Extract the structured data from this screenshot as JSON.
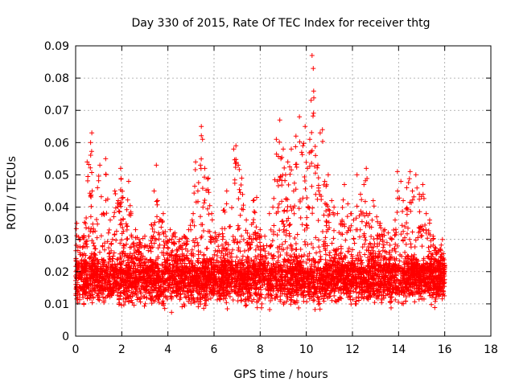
{
  "chart_data": {
    "type": "scatter",
    "title": "Day 330 of 2015, Rate Of TEC Index for receiver thtg",
    "xlabel": "GPS time / hours",
    "ylabel": "ROTI / TECUs",
    "xlim": [
      0,
      18
    ],
    "ylim": [
      0,
      0.09
    ],
    "x_ticks": [
      "0",
      "2",
      "4",
      "6",
      "8",
      "10",
      "12",
      "14",
      "16",
      "18"
    ],
    "y_ticks": [
      "0",
      "0.01",
      "0.02",
      "0.03",
      "0.04",
      "0.05",
      "0.06",
      "0.07",
      "0.08",
      "0.09"
    ],
    "grid": true,
    "marker": "+",
    "color": "#ff0000",
    "series": [
      {
        "x": [
          0.05,
          0.2,
          0.35,
          0.5,
          0.65,
          0.7,
          0.72,
          0.8,
          0.95,
          1.05,
          1.2,
          1.3,
          1.5,
          1.6,
          1.7,
          1.85,
          1.95,
          2.05,
          2.1,
          2.3,
          2.4,
          2.6,
          2.75,
          3.0,
          3.2,
          3.4,
          3.5,
          3.55,
          3.7,
          3.8,
          3.95,
          4.1,
          4.3,
          4.5,
          4.7,
          4.9,
          5.05,
          5.2,
          5.3,
          5.45,
          5.5,
          5.52,
          5.6,
          5.75,
          5.9,
          6.05,
          6.2,
          6.4,
          6.55,
          6.7,
          6.85,
          6.95,
          7.05,
          7.2,
          7.4,
          7.55,
          7.7,
          7.85,
          8.0,
          8.2,
          8.4,
          8.55,
          8.7,
          8.85,
          8.9,
          9.0,
          9.1,
          9.2,
          9.35,
          9.45,
          9.55,
          9.7,
          9.8,
          9.85,
          9.95,
          10.05,
          10.15,
          10.25,
          10.3,
          10.32,
          10.4,
          10.5,
          10.6,
          10.7,
          10.8,
          10.95,
          11.1,
          11.2,
          11.35,
          11.5,
          11.65,
          11.8,
          11.95,
          12.05,
          12.2,
          12.35,
          12.5,
          12.6,
          12.75,
          12.9,
          13.05,
          13.2,
          13.4,
          13.55,
          13.7,
          13.85,
          13.95,
          14.1,
          14.2,
          14.35,
          14.5,
          14.6,
          14.75,
          14.9,
          15.05,
          15.2,
          15.35,
          15.5,
          15.65,
          15.8,
          15.9,
          16.0
        ],
        "y": [
          0.035,
          0.03,
          0.031,
          0.054,
          0.06,
          0.063,
          0.045,
          0.028,
          0.046,
          0.053,
          0.038,
          0.055,
          0.036,
          0.03,
          0.045,
          0.042,
          0.052,
          0.043,
          0.028,
          0.048,
          0.038,
          0.033,
          0.03,
          0.031,
          0.028,
          0.045,
          0.053,
          0.042,
          0.036,
          0.038,
          0.029,
          0.033,
          0.032,
          0.03,
          0.031,
          0.033,
          0.036,
          0.054,
          0.045,
          0.065,
          0.061,
          0.04,
          0.052,
          0.049,
          0.038,
          0.032,
          0.031,
          0.039,
          0.045,
          0.034,
          0.058,
          0.059,
          0.053,
          0.049,
          0.036,
          0.031,
          0.042,
          0.043,
          0.033,
          0.031,
          0.038,
          0.04,
          0.061,
          0.067,
          0.055,
          0.058,
          0.05,
          0.054,
          0.058,
          0.045,
          0.062,
          0.068,
          0.057,
          0.059,
          0.065,
          0.052,
          0.061,
          0.087,
          0.083,
          0.076,
          0.056,
          0.053,
          0.063,
          0.064,
          0.048,
          0.05,
          0.042,
          0.04,
          0.038,
          0.035,
          0.047,
          0.041,
          0.038,
          0.036,
          0.05,
          0.044,
          0.047,
          0.052,
          0.038,
          0.042,
          0.037,
          0.035,
          0.033,
          0.032,
          0.03,
          0.036,
          0.051,
          0.048,
          0.042,
          0.046,
          0.051,
          0.045,
          0.05,
          0.044,
          0.047,
          0.038,
          0.036,
          0.031,
          0.026,
          0.027,
          0.03,
          0.022
        ],
        "band_low": 0.01,
        "band_high": 0.025,
        "point_count": 5400
      }
    ]
  }
}
